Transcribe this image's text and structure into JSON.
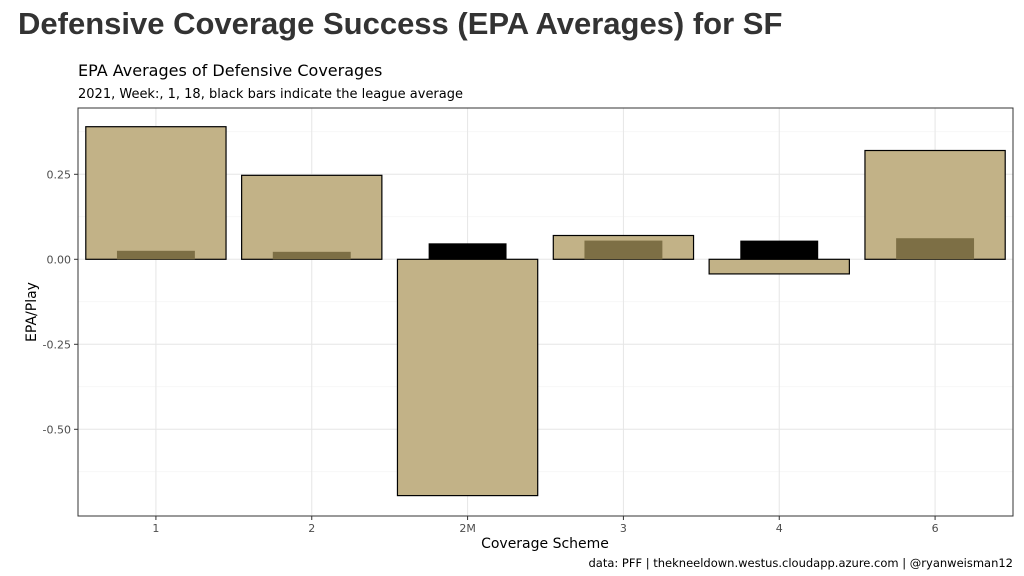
{
  "page_title": "Defensive Coverage Success (EPA Averages) for SF",
  "chart_data": {
    "type": "bar",
    "title": "EPA Averages of Defensive Coverages",
    "subtitle": "2021, Week:, 1, 18, black bars indicate the league average",
    "xlabel": "Coverage Scheme",
    "ylabel": "EPA/Play",
    "caption": "data: PFF | thekneeldown.westus.cloudapp.azure.com | @ryanweisman12",
    "categories": [
      "1",
      "2",
      "2M",
      "3",
      "4",
      "6"
    ],
    "series": [
      {
        "values": [
          0.39,
          0.247,
          -0.695,
          0.07,
          -0.043,
          0.32
        ]
      },
      {
        "values": [
          0.025,
          0.022,
          0.047,
          0.055,
          0.055,
          0.062
        ]
      }
    ],
    "yticks": [
      0.25,
      0.0,
      -0.25,
      -0.5
    ],
    "ytick_labels": [
      "0.25",
      "0.00",
      "-0.25",
      "-0.50"
    ],
    "ylim": [
      -0.755,
      0.445
    ],
    "grid": true,
    "colors": {
      "team_bar": "#c2b287",
      "team_bar_stroke": "#000000",
      "league_bar": "#000000",
      "league_overlap": "#7d6f45",
      "panel_border": "#333333",
      "grid_major": "#e6e6e6",
      "grid_minor": "#f2f2f2"
    }
  }
}
